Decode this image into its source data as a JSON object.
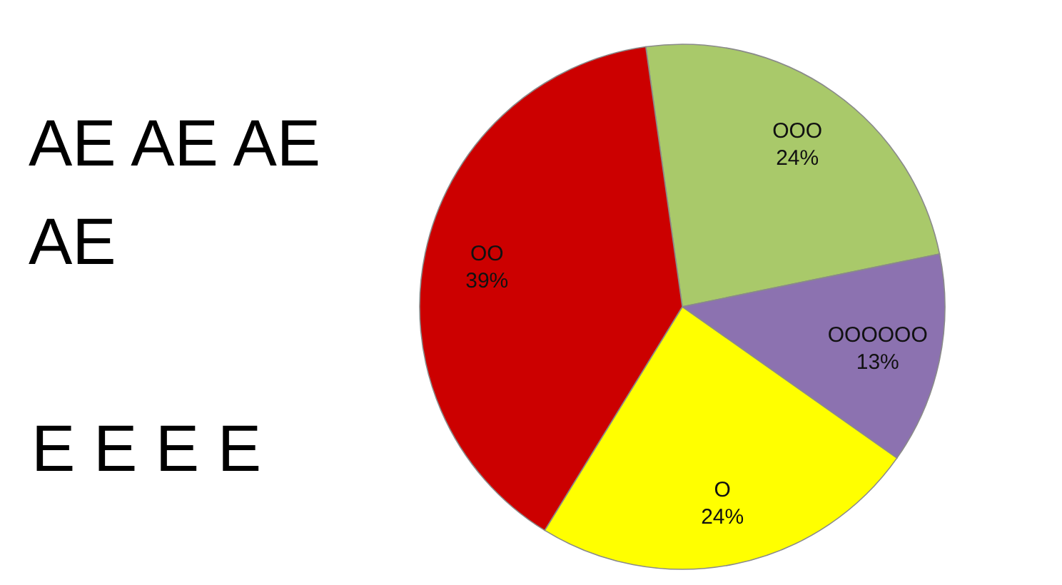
{
  "chart_data": {
    "type": "pie",
    "title": "AE AE AE AE",
    "subtitle": "E E E E",
    "categories": [
      "OOO",
      "OOOOOO",
      "O",
      "OO"
    ],
    "values": [
      24,
      13,
      24,
      39
    ],
    "colors": [
      "#a9c96a",
      "#8c72b0",
      "#ffff00",
      "#cc0000"
    ],
    "value_labels": [
      "24%",
      "13%",
      "24%",
      "39%"
    ]
  }
}
